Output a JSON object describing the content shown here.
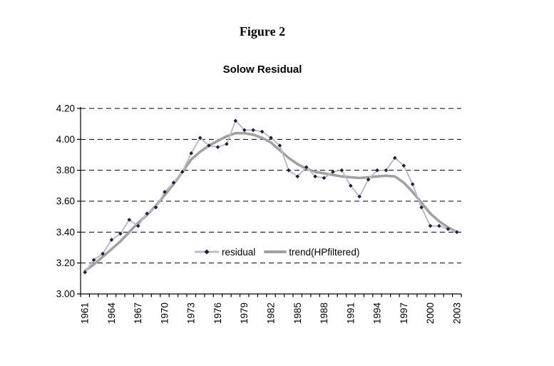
{
  "figure": {
    "title": "Figure 2"
  },
  "chart_data": {
    "type": "line",
    "title": "Solow Residual",
    "x_start_year": 1961,
    "x_end_year": 2003,
    "x_tick_labels": [
      "1961",
      "1964",
      "1967",
      "1970",
      "1973",
      "1976",
      "1979",
      "1982",
      "1985",
      "1988",
      "1991",
      "1994",
      "1997",
      "2000",
      "2003"
    ],
    "x_label_step": 3,
    "y_ticks": [
      3.0,
      3.2,
      3.4,
      3.6,
      3.8,
      4.0,
      4.2
    ],
    "y_tick_labels": [
      "3.00",
      "3.20",
      "3.40",
      "3.60",
      "3.80",
      "4.00",
      "4.20"
    ],
    "ylim": [
      3.0,
      4.2
    ],
    "grid": "horizontal dashed black",
    "legend_position": "inside bottom center",
    "colors": {
      "residual_line": "#b9bdc9",
      "residual_marker": "#1e1e3a",
      "trend_line": "#a1a1a1",
      "grid_line": "#000000",
      "axis_line": "#000000"
    },
    "series": [
      {
        "name": "residual",
        "style": "thin line with diamond markers",
        "values": [
          3.14,
          3.22,
          3.26,
          3.35,
          3.39,
          3.48,
          3.44,
          3.52,
          3.56,
          3.66,
          3.72,
          3.79,
          3.91,
          4.01,
          3.96,
          3.95,
          3.97,
          4.12,
          4.06,
          4.06,
          4.05,
          4.01,
          3.96,
          3.8,
          3.76,
          3.82,
          3.76,
          3.75,
          3.79,
          3.8,
          3.7,
          3.63,
          3.74,
          3.8,
          3.8,
          3.88,
          3.83,
          3.71,
          3.56,
          3.44,
          3.44,
          3.42,
          3.4
        ]
      },
      {
        "name": "trend(HPfiltered)",
        "style": "thick smooth gray line",
        "values": [
          3.15,
          3.19,
          3.24,
          3.29,
          3.34,
          3.4,
          3.46,
          3.51,
          3.57,
          3.64,
          3.71,
          3.79,
          3.87,
          3.92,
          3.96,
          3.99,
          4.02,
          4.04,
          4.04,
          4.03,
          4.01,
          3.98,
          3.93,
          3.88,
          3.84,
          3.81,
          3.79,
          3.78,
          3.77,
          3.76,
          3.755,
          3.75,
          3.755,
          3.76,
          3.765,
          3.76,
          3.72,
          3.66,
          3.59,
          3.52,
          3.47,
          3.43,
          3.4
        ]
      }
    ]
  }
}
